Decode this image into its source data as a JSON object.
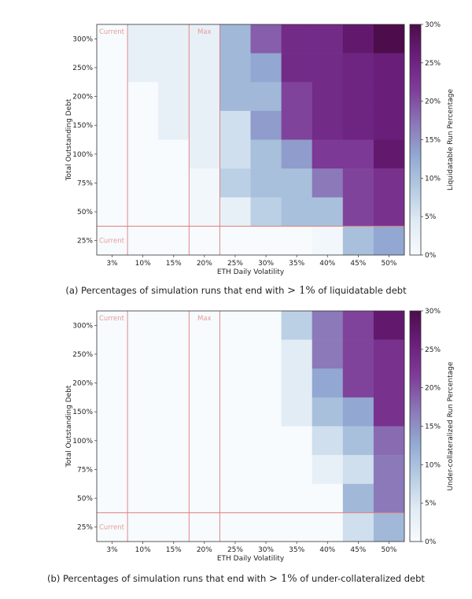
{
  "chart_data": [
    {
      "type": "heatmap",
      "x": [
        "3%",
        "10%",
        "15%",
        "20%",
        "25%",
        "30%",
        "35%",
        "40%",
        "45%",
        "50%"
      ],
      "y": [
        "25%",
        "50%",
        "75%",
        "100%",
        "150%",
        "200%",
        "250%",
        "300%"
      ],
      "xlabel": "ETH Daily Volatility",
      "ylabel": "Total Outstanding Debt",
      "colorbar_label": "Liquidatable Run Percentage",
      "colorbar_ticks": [
        "0%",
        "5%",
        "10%",
        "15%",
        "20%",
        "25%",
        "30%"
      ],
      "zlim": [
        0,
        30
      ],
      "values_rows_top_to_bottom": [
        [
          0,
          3,
          3,
          3,
          11,
          19,
          24,
          24,
          27,
          30
        ],
        [
          0,
          3,
          3,
          3,
          11,
          13,
          24,
          24,
          25,
          26
        ],
        [
          0,
          0,
          3,
          3,
          11,
          11,
          21,
          24,
          25,
          26
        ],
        [
          0,
          0,
          3,
          3,
          6,
          14,
          21,
          24,
          25,
          26
        ],
        [
          0,
          0,
          0,
          3,
          6,
          10,
          14,
          22,
          22,
          27
        ],
        [
          0,
          0,
          0,
          1,
          8,
          10,
          10,
          17,
          21,
          23
        ],
        [
          0,
          0,
          0,
          1,
          3,
          8,
          10,
          10,
          21,
          23
        ],
        [
          0,
          0,
          0,
          0,
          0,
          0,
          0,
          1,
          10,
          13
        ]
      ],
      "annotations": {
        "current_x": "Current",
        "max_x": "Max",
        "current_y": "Current"
      },
      "caption_before": "(a) Percentages of simulation runs that end with ",
      "caption_math": "> 1%",
      "caption_after": " of liquidatable debt"
    },
    {
      "type": "heatmap",
      "x": [
        "3%",
        "10%",
        "15%",
        "20%",
        "25%",
        "30%",
        "35%",
        "40%",
        "45%",
        "50%"
      ],
      "y": [
        "25%",
        "50%",
        "75%",
        "100%",
        "150%",
        "200%",
        "250%",
        "300%"
      ],
      "xlabel": "ETH Daily Volatility",
      "ylabel": "Total Outstanding Debt",
      "colorbar_label": "Under-collateralized Run Percentage",
      "colorbar_ticks": [
        "0%",
        "5%",
        "10%",
        "15%",
        "20%",
        "25%",
        "30%"
      ],
      "zlim": [
        0,
        30
      ],
      "values_rows_top_to_bottom": [
        [
          0,
          0,
          0,
          0,
          0,
          0,
          8,
          17,
          21,
          27
        ],
        [
          0,
          0,
          0,
          0,
          0,
          0,
          4,
          17,
          21,
          23
        ],
        [
          0,
          0,
          0,
          0,
          0,
          0,
          4,
          13,
          21,
          23
        ],
        [
          0,
          0,
          0,
          0,
          0,
          0,
          4,
          10,
          13,
          23
        ],
        [
          0,
          0,
          0,
          0,
          0,
          0,
          0,
          6,
          10,
          18
        ],
        [
          0,
          0,
          0,
          0,
          0,
          0,
          0,
          3,
          6,
          17
        ],
        [
          0,
          0,
          0,
          0,
          0,
          0,
          0,
          0,
          11,
          17
        ],
        [
          0,
          0,
          0,
          0,
          0,
          0,
          0,
          0,
          6,
          11
        ]
      ],
      "annotations": {
        "current_x": "Current",
        "max_x": "Max",
        "current_y": "Current"
      },
      "caption_before": "(b) Percentages of simulation runs that end with ",
      "caption_math": "> 1%",
      "caption_after": " of under-collateralized debt"
    }
  ],
  "colors": {
    "scale_stops": [
      "#f7fbfd",
      "#e1ebf4",
      "#b5cce3",
      "#92a9d2",
      "#8b77b8",
      "#7f3d99",
      "#6b1f7c",
      "#4d0c4b"
    ],
    "reference_line": "#e07b7b"
  }
}
